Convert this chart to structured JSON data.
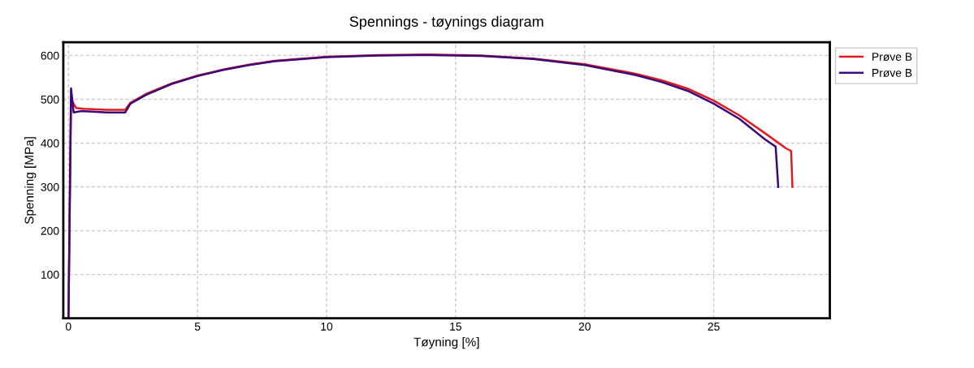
{
  "chart_data": {
    "type": "line",
    "title": "Spennings - tøynings diagram",
    "xlabel": "Tøyning [%]",
    "ylabel": "Spenning [MPa]",
    "xlim": [
      -0.2,
      29.5
    ],
    "ylim": [
      0,
      630
    ],
    "xticks": [
      0,
      5,
      10,
      15,
      20,
      25
    ],
    "yticks": [
      100,
      200,
      300,
      400,
      500,
      600
    ],
    "grid": true,
    "legend": "right",
    "line_style": "solid",
    "marker": "none",
    "series": [
      {
        "name": "Prøve B",
        "color": "#e31a1c",
        "x": [
          0,
          0.1,
          0.3,
          0.6,
          1.5,
          2.2,
          2.4,
          3,
          4,
          5,
          6,
          7,
          8,
          10,
          12,
          14,
          16,
          18,
          20,
          22,
          23,
          24,
          25,
          26,
          27,
          27.8,
          28.0,
          28.05
        ],
        "values": [
          0,
          500,
          480,
          478,
          476,
          476,
          492,
          512,
          536,
          554,
          568,
          579,
          588,
          597,
          601,
          602,
          600,
          593,
          580,
          558,
          543,
          524,
          497,
          463,
          422,
          388,
          382,
          300
        ]
      },
      {
        "name": "Prøve B",
        "color": "#3b0a78",
        "x": [
          0,
          0.1,
          0.2,
          0.5,
          1.5,
          2.2,
          2.4,
          3,
          4,
          5,
          6,
          7,
          8,
          10,
          12,
          14,
          16,
          18,
          20,
          22,
          23,
          24,
          25,
          26,
          27,
          27.4,
          27.5
        ],
        "values": [
          0,
          525,
          470,
          473,
          470,
          470,
          490,
          510,
          535,
          553,
          567,
          578,
          587,
          596,
          600,
          601,
          599,
          592,
          578,
          555,
          539,
          519,
          490,
          455,
          408,
          392,
          300
        ]
      }
    ]
  }
}
